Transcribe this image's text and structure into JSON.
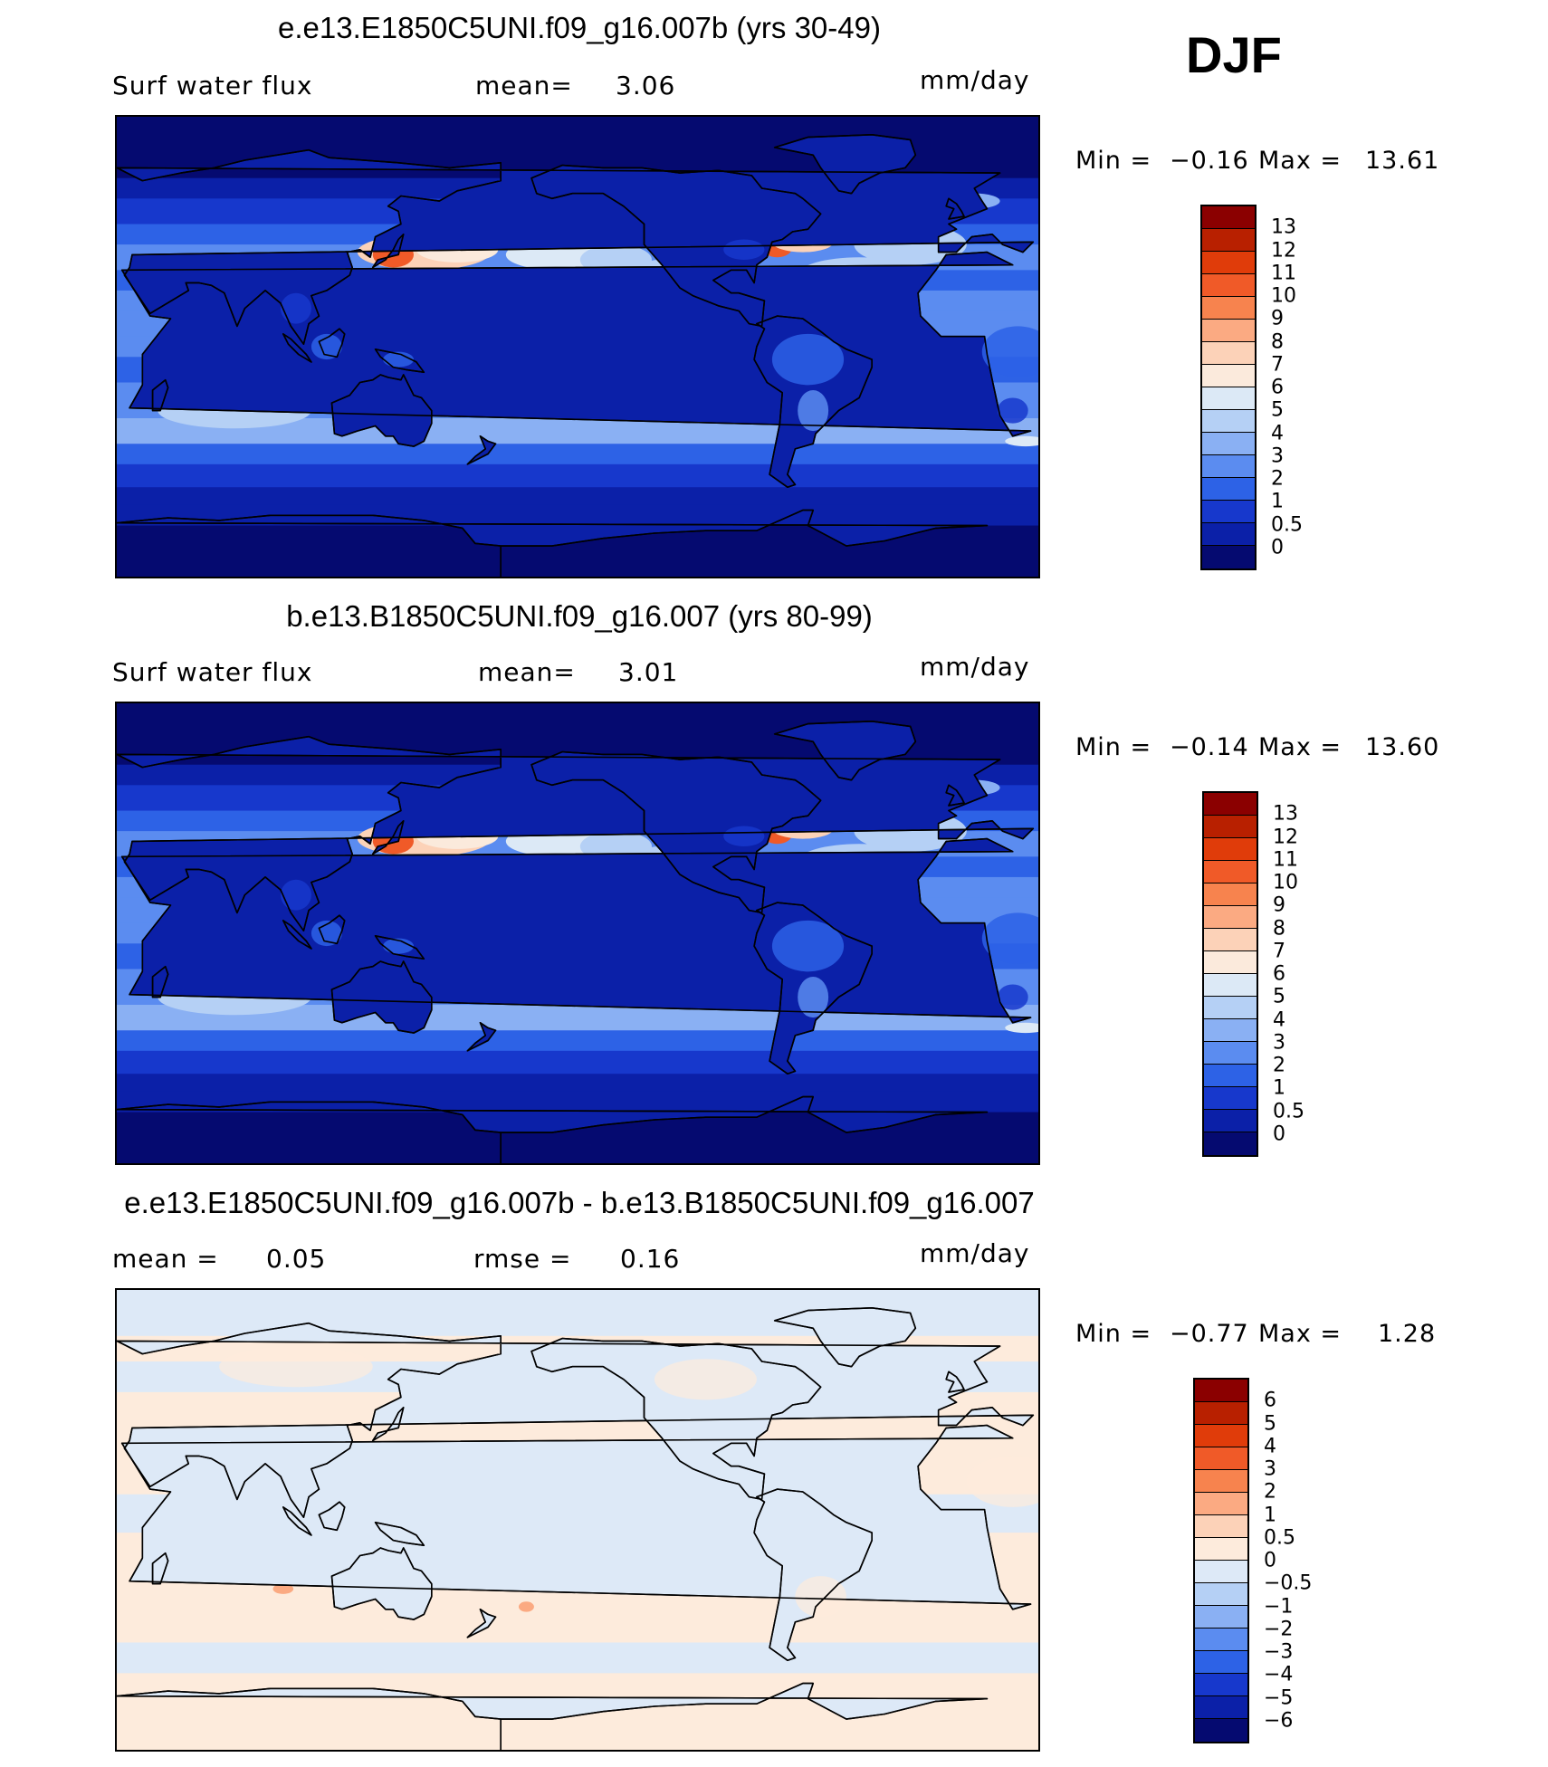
{
  "season": "DJF",
  "panels": [
    {
      "title": "e.e13.E1850C5UNI.f09_g16.007b (yrs 30-49)",
      "variable": "Surf water flux",
      "stat1_label": "mean=",
      "stat1_value": "3.06",
      "stat2_label": "",
      "stat2_value": "",
      "units": "mm/day",
      "min_label": "Min =",
      "min_value": "−0.16",
      "max_label": "Max =",
      "max_value": "13.61",
      "scale": "absolute",
      "legend_labels": [
        "13",
        "12",
        "11",
        "10",
        "9",
        "8",
        "7",
        "6",
        "5",
        "4",
        "3",
        "2",
        "1",
        "0.5",
        "0"
      ],
      "legend_colors": [
        "#8b0000",
        "#b82000",
        "#e03c0a",
        "#f05a28",
        "#f7834e",
        "#fbaa82",
        "#fcd2b8",
        "#fbeadc",
        "#dce9f6",
        "#b5d0f5",
        "#8ab0f3",
        "#5b8cf0",
        "#2d62e6",
        "#1738cc",
        "#0b20a8",
        "#050a70"
      ]
    },
    {
      "title": "b.e13.B1850C5UNI.f09_g16.007 (yrs 80-99)",
      "variable": "Surf water flux",
      "stat1_label": "mean=",
      "stat1_value": "3.01",
      "stat2_label": "",
      "stat2_value": "",
      "units": "mm/day",
      "min_label": "Min =",
      "min_value": "−0.14",
      "max_label": "Max =",
      "max_value": "13.60",
      "scale": "absolute",
      "legend_labels": [
        "13",
        "12",
        "11",
        "10",
        "9",
        "8",
        "7",
        "6",
        "5",
        "4",
        "3",
        "2",
        "1",
        "0.5",
        "0"
      ],
      "legend_colors": [
        "#8b0000",
        "#b82000",
        "#e03c0a",
        "#f05a28",
        "#f7834e",
        "#fbaa82",
        "#fcd2b8",
        "#fbeadc",
        "#dce9f6",
        "#b5d0f5",
        "#8ab0f3",
        "#5b8cf0",
        "#2d62e6",
        "#1738cc",
        "#0b20a8",
        "#050a70"
      ]
    },
    {
      "title": "e.e13.E1850C5UNI.f09_g16.007b - b.e13.B1850C5UNI.f09_g16.007",
      "variable": "",
      "stat1_label": "mean =",
      "stat1_value": "0.05",
      "stat2_label": "rmse =",
      "stat2_value": "0.16",
      "units": "mm/day",
      "min_label": "Min =",
      "min_value": "−0.77",
      "max_label": "Max =",
      "max_value": "1.28",
      "scale": "difference",
      "legend_labels": [
        "6",
        "5",
        "4",
        "3",
        "2",
        "1",
        "0.5",
        "0",
        "−0.5",
        "−1",
        "−2",
        "−3",
        "−4",
        "−5",
        "−6"
      ],
      "legend_colors": [
        "#8b0000",
        "#b82000",
        "#e03c0a",
        "#f05a28",
        "#f7834e",
        "#fbaa82",
        "#fcd2b8",
        "#fdebdc",
        "#dde9f7",
        "#b5d0f5",
        "#8ab0f3",
        "#5b8cf0",
        "#2d62e6",
        "#1738cc",
        "#0b20a8",
        "#050a70"
      ]
    }
  ]
}
